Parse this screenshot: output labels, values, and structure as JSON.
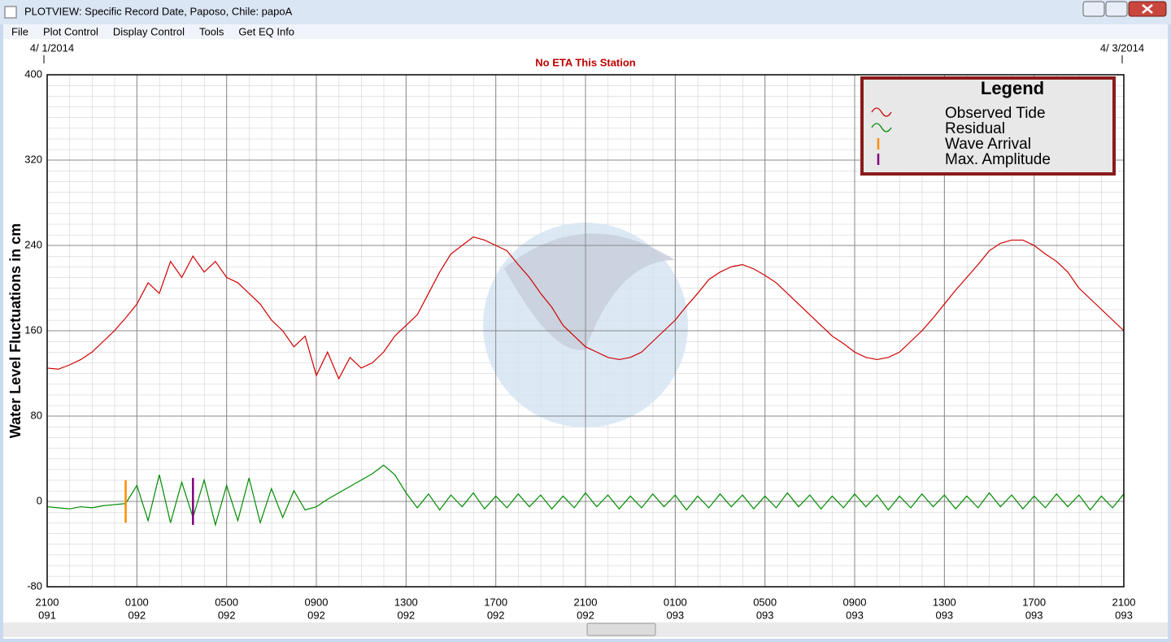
{
  "window": {
    "title": "PLOTVIEW: Specific Record Date, Paposo, Chile: papoA",
    "menu": [
      "File",
      "Plot Control",
      "Display Control",
      "Tools",
      "Get EQ Info"
    ]
  },
  "chart_data": {
    "type": "line",
    "start_date": "4/ 1/2014",
    "end_date": "4/ 3/2014",
    "subtitle": "No ETA This Station",
    "y_label": "Water Level Fluctuations in cm",
    "legend_title": "Legend",
    "legend": "top-right",
    "grid": true,
    "xlim": [
      0,
      48
    ],
    "xticks": [
      {
        "value": 0,
        "label": "2100"
      },
      {
        "value": 4,
        "label": "0100"
      },
      {
        "value": 8,
        "label": "0500"
      },
      {
        "value": 12,
        "label": "0900"
      },
      {
        "value": 16,
        "label": "1300"
      },
      {
        "value": 20,
        "label": "1700"
      },
      {
        "value": 24,
        "label": "2100"
      },
      {
        "value": 28,
        "label": "0100"
      },
      {
        "value": 32,
        "label": "0500"
      },
      {
        "value": 36,
        "label": "0900"
      },
      {
        "value": 40,
        "label": "1300"
      },
      {
        "value": 44,
        "label": "1700"
      },
      {
        "value": 48,
        "label": "2100"
      }
    ],
    "xtick_days": [
      "091",
      "092",
      "092",
      "092",
      "092",
      "092",
      "092",
      "093",
      "093",
      "093",
      "093",
      "093",
      "093"
    ],
    "ylim": [
      -80,
      400
    ],
    "yticks": [
      -80,
      0,
      80,
      160,
      240,
      320,
      400
    ],
    "x": [
      0,
      0.5,
      1,
      1.5,
      2,
      2.5,
      3,
      3.5,
      4,
      4.5,
      5,
      5.5,
      6,
      6.5,
      7,
      7.5,
      8,
      8.5,
      9,
      9.5,
      10,
      10.5,
      11,
      11.5,
      12,
      12.5,
      13,
      13.5,
      14,
      14.5,
      15,
      15.5,
      16,
      16.5,
      17,
      17.5,
      18,
      18.5,
      19,
      19.5,
      20,
      20.5,
      21,
      21.5,
      22,
      22.5,
      23,
      23.5,
      24,
      24.5,
      25,
      25.5,
      26,
      26.5,
      27,
      27.5,
      28,
      28.5,
      29,
      29.5,
      30,
      30.5,
      31,
      31.5,
      32,
      32.5,
      33,
      33.5,
      34,
      34.5,
      35,
      35.5,
      36,
      36.5,
      37,
      37.5,
      38,
      38.5,
      39,
      39.5,
      40,
      40.5,
      41,
      41.5,
      42,
      42.5,
      43,
      43.5,
      44,
      44.5,
      45,
      45.5,
      46,
      46.5,
      47,
      47.5,
      48
    ],
    "series": [
      {
        "name": "Observed Tide",
        "color": "#d00000",
        "values": [
          125,
          124,
          128,
          133,
          140,
          150,
          160,
          172,
          185,
          205,
          195,
          225,
          210,
          230,
          215,
          225,
          210,
          205,
          195,
          185,
          170,
          160,
          145,
          155,
          118,
          140,
          115,
          135,
          125,
          130,
          140,
          155,
          165,
          175,
          195,
          215,
          232,
          240,
          248,
          245,
          240,
          235,
          222,
          210,
          195,
          182,
          165,
          155,
          145,
          140,
          135,
          133,
          135,
          140,
          150,
          160,
          170,
          183,
          195,
          208,
          215,
          220,
          222,
          218,
          212,
          205,
          195,
          185,
          175,
          165,
          155,
          148,
          140,
          135,
          133,
          135,
          140,
          150,
          160,
          172,
          185,
          198,
          210,
          222,
          235,
          242,
          245,
          245,
          240,
          232,
          225,
          215,
          200,
          190,
          180,
          170,
          160
        ]
      },
      {
        "name": "Residual",
        "color": "#008c00",
        "values": [
          -5,
          -6,
          -7,
          -5,
          -6,
          -4,
          -3,
          -2,
          15,
          -18,
          25,
          -20,
          18,
          -15,
          20,
          -22,
          15,
          -18,
          22,
          -20,
          12,
          -15,
          10,
          -8,
          -5,
          2,
          8,
          14,
          20,
          26,
          34,
          25,
          8,
          -6,
          7,
          -8,
          6,
          -5,
          8,
          -7,
          5,
          -6,
          7,
          -5,
          6,
          -7,
          5,
          -6,
          8,
          -5,
          6,
          -7,
          5,
          -6,
          7,
          -5,
          6,
          -8,
          5,
          -6,
          7,
          -5,
          6,
          -7,
          5,
          -6,
          8,
          -5,
          6,
          -7,
          5,
          -6,
          7,
          -5,
          6,
          -8,
          5,
          -6,
          7,
          -5,
          6,
          -7,
          5,
          -6,
          8,
          -5,
          6,
          -7,
          5,
          -6,
          7,
          -5,
          6,
          -8,
          5,
          -6,
          7
        ]
      }
    ],
    "events": [
      {
        "name": "Wave Arrival",
        "color": "#ff8c00",
        "x": 3.5,
        "range": [
          -20,
          20
        ]
      },
      {
        "name": "Max. Amplitude",
        "color": "#800080",
        "x": 6.5,
        "range": [
          -22,
          22
        ]
      }
    ]
  }
}
